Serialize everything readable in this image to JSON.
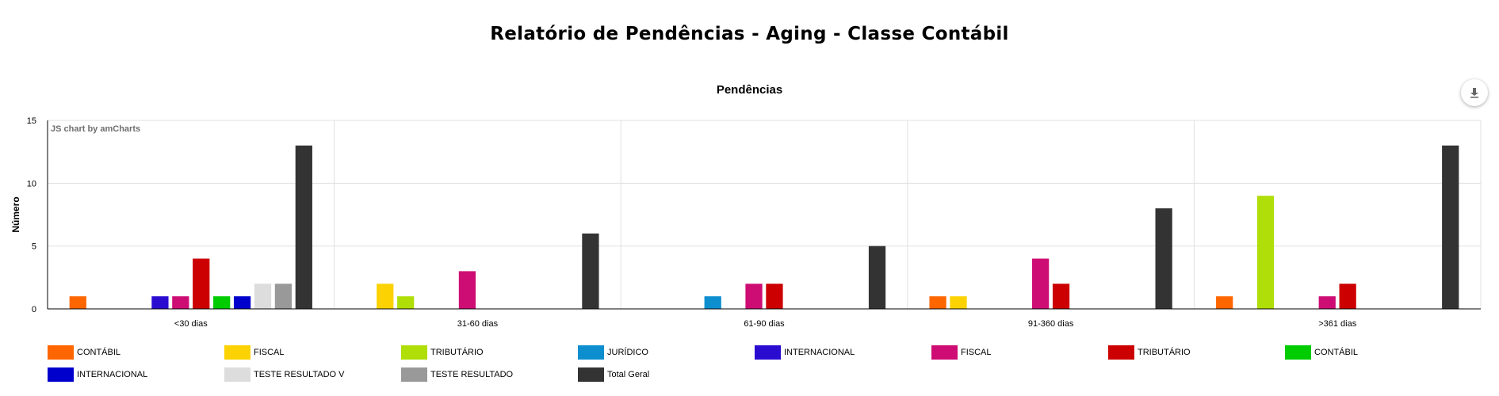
{
  "page_title": "Relatório de Pendências - Aging -  Classe Contábil",
  "credit": "JS chart by amCharts",
  "export_icon": "download-icon",
  "chart_data": {
    "type": "bar",
    "title": "Pendências",
    "xlabel": "",
    "ylabel": "Número",
    "ylim": [
      0,
      15
    ],
    "yticks": [
      0,
      5,
      10,
      15
    ],
    "grid": true,
    "legend_position": "bottom",
    "categories": [
      "<30 dias",
      "31-60 dias",
      "61-90 dias",
      "91-360 dias",
      ">361 dias"
    ],
    "series": [
      {
        "name": "CONTÁBIL",
        "color": "#ff6600",
        "values": [
          1,
          0,
          0,
          1,
          1
        ]
      },
      {
        "name": "FISCAL",
        "color": "#fcd202",
        "values": [
          0,
          2,
          0,
          1,
          0
        ]
      },
      {
        "name": "TRIBUTÁRIO",
        "color": "#b0de09",
        "values": [
          0,
          1,
          0,
          0,
          9
        ]
      },
      {
        "name": "JURÍDICO",
        "color": "#0d8ecf",
        "values": [
          0,
          0,
          1,
          0,
          0
        ]
      },
      {
        "name": "INTERNACIONAL",
        "color": "#2a0cd0",
        "values": [
          1,
          0,
          0,
          0,
          0
        ]
      },
      {
        "name": "FISCAL",
        "color": "#cd0d74",
        "values": [
          1,
          3,
          2,
          4,
          1
        ]
      },
      {
        "name": "TRIBUTÁRIO",
        "color": "#cc0000",
        "values": [
          4,
          0,
          2,
          2,
          2
        ]
      },
      {
        "name": "CONTÁBIL",
        "color": "#00cc00",
        "values": [
          1,
          0,
          0,
          0,
          0
        ]
      },
      {
        "name": "INTERNACIONAL",
        "color": "#0000cc",
        "values": [
          1,
          0,
          0,
          0,
          0
        ]
      },
      {
        "name": "TESTE RESULTADO V",
        "color": "#dddddd",
        "values": [
          2,
          0,
          0,
          0,
          0
        ]
      },
      {
        "name": "TESTE RESULTADO",
        "color": "#999999",
        "values": [
          2,
          0,
          0,
          0,
          0
        ]
      },
      {
        "name": "Total Geral",
        "color": "#333333",
        "values": [
          13,
          6,
          5,
          8,
          13
        ]
      }
    ]
  }
}
